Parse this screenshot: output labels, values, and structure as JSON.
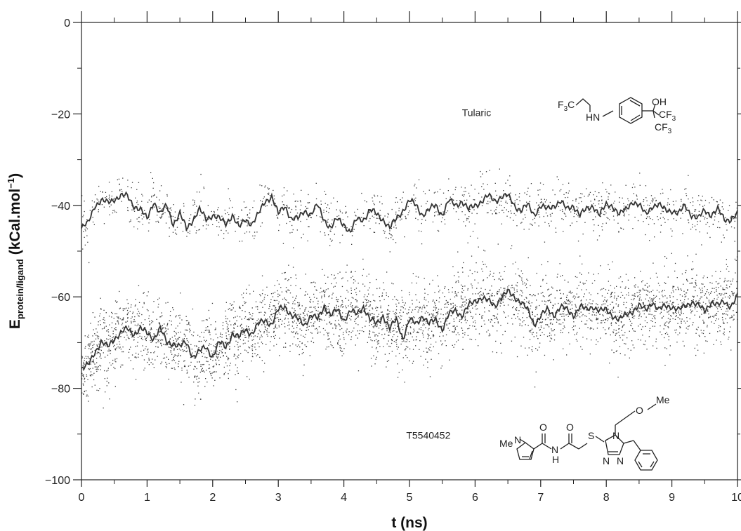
{
  "chart_data": {
    "type": "scatter",
    "title": "",
    "xlabel": "t (ns)",
    "ylabel_main": "E",
    "ylabel_sub": "protein/ligand",
    "ylabel_unit_prefix": " (kCal.mol",
    "ylabel_unit_exp": "−1",
    "ylabel_unit_suffix": ")",
    "xlim": [
      0,
      10
    ],
    "ylim": [
      -100,
      0
    ],
    "xticks": [
      "0",
      "1",
      "2",
      "3",
      "4",
      "5",
      "6",
      "7",
      "8",
      "9",
      "10"
    ],
    "yticks": [
      "0",
      "−20",
      "−40",
      "−60",
      "−80",
      "−100"
    ],
    "grid": false,
    "series": [
      {
        "name": "Tularic",
        "spread": 2.6,
        "density": 1.0,
        "color": "#3a3a3a",
        "x": [
          0,
          0.1,
          0.2,
          0.3,
          0.4,
          0.5,
          0.6,
          0.7,
          0.8,
          0.9,
          1.0,
          1.1,
          1.2,
          1.3,
          1.4,
          1.5,
          1.6,
          1.7,
          1.8,
          1.9,
          2.0,
          2.1,
          2.2,
          2.3,
          2.4,
          2.5,
          2.6,
          2.7,
          2.8,
          2.9,
          3.0,
          3.1,
          3.2,
          3.3,
          3.4,
          3.5,
          3.6,
          3.7,
          3.8,
          3.9,
          4.0,
          4.1,
          4.2,
          4.3,
          4.4,
          4.5,
          4.6,
          4.7,
          4.8,
          4.9,
          5.0,
          5.1,
          5.2,
          5.3,
          5.4,
          5.5,
          5.6,
          5.7,
          5.8,
          5.9,
          6.0,
          6.1,
          6.2,
          6.3,
          6.4,
          6.5,
          6.6,
          6.7,
          6.8,
          6.9,
          7.0,
          7.1,
          7.2,
          7.3,
          7.4,
          7.5,
          7.6,
          7.7,
          7.8,
          7.9,
          8.0,
          8.1,
          8.2,
          8.3,
          8.4,
          8.5,
          8.6,
          8.7,
          8.8,
          8.9,
          9.0,
          9.1,
          9.2,
          9.3,
          9.4,
          9.5,
          9.6,
          9.7,
          9.8,
          9.9,
          10.0
        ],
        "y": [
          -45,
          -44,
          -40,
          -39,
          -39.5,
          -38.5,
          -38,
          -38,
          -40,
          -41,
          -43,
          -39,
          -42,
          -40,
          -44,
          -42,
          -45,
          -43,
          -41,
          -43,
          -42,
          -43,
          -44,
          -42,
          -45,
          -43,
          -44,
          -42,
          -39,
          -38,
          -42,
          -40,
          -43,
          -43,
          -41,
          -42,
          -40,
          -43,
          -45,
          -43,
          -44,
          -46,
          -43,
          -43,
          -41,
          -42,
          -43,
          -45,
          -43,
          -41,
          -39,
          -40,
          -42,
          -41,
          -40,
          -42,
          -39,
          -40,
          -39,
          -41,
          -40,
          -39,
          -38,
          -39,
          -38,
          -38,
          -40,
          -41,
          -40,
          -42,
          -40,
          -41,
          -40,
          -39,
          -41,
          -40,
          -42,
          -41,
          -40,
          -42,
          -40,
          -40,
          -42,
          -41,
          -39,
          -40,
          -42,
          -40,
          -40,
          -41,
          -41,
          -42,
          -40,
          -42,
          -43,
          -41,
          -42,
          -41,
          -43,
          -43,
          -42
        ]
      },
      {
        "name": "T5540452",
        "spread": 4.2,
        "density": 3.2,
        "color": "#3a3a3a",
        "x": [
          0,
          0.1,
          0.2,
          0.3,
          0.4,
          0.5,
          0.6,
          0.7,
          0.8,
          0.9,
          1.0,
          1.1,
          1.2,
          1.3,
          1.4,
          1.5,
          1.6,
          1.7,
          1.8,
          1.9,
          2.0,
          2.1,
          2.2,
          2.3,
          2.4,
          2.5,
          2.6,
          2.7,
          2.8,
          2.9,
          3.0,
          3.1,
          3.2,
          3.3,
          3.4,
          3.5,
          3.6,
          3.7,
          3.8,
          3.9,
          4.0,
          4.1,
          4.2,
          4.3,
          4.4,
          4.5,
          4.6,
          4.7,
          4.8,
          4.9,
          5.0,
          5.1,
          5.2,
          5.3,
          5.4,
          5.5,
          5.6,
          5.7,
          5.8,
          5.9,
          6.0,
          6.1,
          6.2,
          6.3,
          6.4,
          6.5,
          6.6,
          6.7,
          6.8,
          6.9,
          7.0,
          7.1,
          7.2,
          7.3,
          7.4,
          7.5,
          7.6,
          7.7,
          7.8,
          7.9,
          8.0,
          8.1,
          8.2,
          8.3,
          8.4,
          8.5,
          8.6,
          8.7,
          8.8,
          8.9,
          9.0,
          9.1,
          9.2,
          9.3,
          9.4,
          9.5,
          9.6,
          9.7,
          9.8,
          9.9,
          10.0
        ],
        "y": [
          -76,
          -75,
          -72,
          -70,
          -71,
          -69,
          -68,
          -67,
          -68,
          -67,
          -68,
          -69,
          -67,
          -70,
          -70,
          -71,
          -70,
          -73,
          -72,
          -71,
          -73,
          -70,
          -71,
          -68,
          -69,
          -67,
          -68,
          -66,
          -65,
          -66,
          -63,
          -62,
          -64,
          -65,
          -66,
          -64,
          -65,
          -62,
          -64,
          -63,
          -65,
          -63,
          -64,
          -62,
          -65,
          -66,
          -64,
          -67,
          -65,
          -69,
          -65,
          -66,
          -64,
          -66,
          -65,
          -67,
          -64,
          -63,
          -64,
          -62,
          -61,
          -60,
          -61,
          -62,
          -60,
          -59,
          -60,
          -61,
          -63,
          -66,
          -64,
          -63,
          -64,
          -62,
          -63,
          -64,
          -62,
          -63,
          -62,
          -63,
          -63,
          -64,
          -65,
          -64,
          -63,
          -62,
          -63,
          -61,
          -63,
          -62,
          -62,
          -63,
          -62,
          -61,
          -62,
          -63,
          -61,
          -62,
          -61,
          -62,
          -60
        ]
      }
    ]
  },
  "molecule_labels": {
    "tularic": {
      "f3c": "F",
      "f3c_sub": "3",
      "f3c_c": "C",
      "hn": "HN",
      "oh": "OH",
      "cf3_top": "CF",
      "cf3_top_sub": "3",
      "cf3_bottom": "CF",
      "cf3_bottom_sub": "3"
    },
    "t5540452": {
      "me_n": "Me",
      "n_ring": "N",
      "o1": "O",
      "nh_n": "N",
      "nh_h": "H",
      "o2": "O",
      "s": "S",
      "n4": "N",
      "n1": "N",
      "n2": "N",
      "ome_o": "O",
      "ome_me": "Me"
    }
  }
}
